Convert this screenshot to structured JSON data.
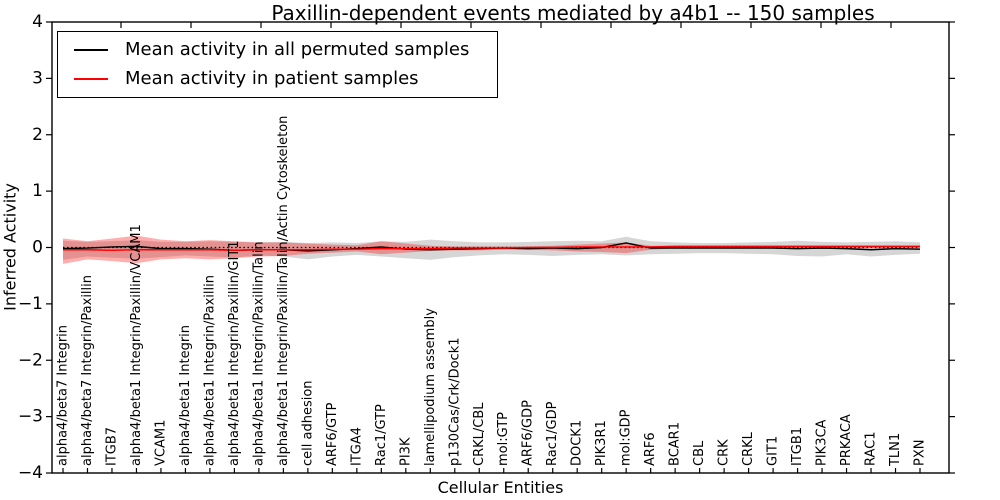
{
  "figure": {
    "title": "Paxillin-dependent events mediated by a4b1 -- 150 samples",
    "legend": {
      "items": [
        {
          "label": "Mean activity in all permuted samples",
          "color": "#000000"
        },
        {
          "label": "Mean activity in patient samples",
          "color": "#ff0000"
        }
      ]
    }
  },
  "chart_data": {
    "type": "line",
    "title": "Paxillin-dependent events mediated by a4b1 -- 150 samples",
    "xlabel": "Cellular Entities",
    "ylabel": "Inferred Activity",
    "ylim": [
      -4,
      4
    ],
    "yticks": [
      4,
      3,
      2,
      1,
      0,
      -1,
      -2,
      -3,
      -4
    ],
    "grid": false,
    "legend_position": "upper left",
    "zero_line": 0,
    "categories": [
      "alpha4/beta7 Integrin",
      "alpha4/beta7 Integrin/Paxillin",
      "ITGB7",
      "alpha4/beta1 Integrin/Paxillin/VCAM1",
      "VCAM1",
      "alpha4/beta1 Integrin",
      "alpha4/beta1 Integrin/Paxillin",
      "alpha4/beta1 Integrin/Paxillin/GIT1",
      "alpha4/beta1 Integrin/Paxillin/Talin",
      "alpha4/beta1 Integrin/Paxillin/Talin/Actin Cytoskeleton",
      "cell adhesion",
      "ARF6/GTP",
      "ITGA4",
      "Rac1/GTP",
      "PI3K",
      "lamellipodium assembly",
      "p130Cas/Crk/Dock1",
      "CRKL/CBL",
      "mol:GTP",
      "ARF6/GDP",
      "Rac1/GDP",
      "DOCK1",
      "PIK3R1",
      "mol:GDP",
      "ARF6",
      "BCAR1",
      "CBL",
      "CRK",
      "CRKL",
      "GIT1",
      "ITGB1",
      "PIK3CA",
      "PRKACA",
      "RAC1",
      "TLN1",
      "PXN"
    ],
    "series": [
      {
        "name": "Mean activity in all permuted samples",
        "color": "#000000",
        "values": [
          -0.02,
          -0.01,
          0.01,
          0.02,
          -0.02,
          -0.02,
          -0.03,
          -0.05,
          -0.04,
          -0.04,
          -0.06,
          -0.04,
          -0.02,
          0.01,
          -0.03,
          -0.04,
          -0.03,
          -0.02,
          -0.01,
          -0.02,
          -0.01,
          -0.02,
          0.0,
          0.08,
          -0.01,
          -0.01,
          -0.01,
          -0.01,
          -0.01,
          -0.01,
          -0.02,
          -0.01,
          -0.02,
          -0.04,
          -0.02,
          -0.03
        ]
      },
      {
        "name": "Mean activity in patient samples",
        "color": "#ff0000",
        "values": [
          -0.04,
          -0.04,
          -0.05,
          -0.04,
          -0.04,
          -0.04,
          -0.04,
          -0.05,
          -0.04,
          -0.04,
          -0.04,
          -0.03,
          -0.03,
          -0.02,
          -0.02,
          -0.02,
          -0.01,
          -0.01,
          -0.01,
          0.0,
          0.0,
          0.01,
          0.01,
          0.01,
          0.01,
          0.02,
          0.02,
          0.02,
          0.02,
          0.02,
          0.02,
          0.02,
          0.02,
          0.02,
          0.02,
          0.02
        ]
      }
    ],
    "bands": [
      {
        "name": "permuted-std-band",
        "color": "#000000",
        "opacity": 0.16,
        "upper": [
          0.12,
          0.1,
          0.11,
          0.13,
          0.1,
          0.1,
          0.11,
          0.1,
          0.09,
          0.1,
          0.08,
          0.09,
          0.08,
          0.11,
          0.1,
          0.14,
          0.11,
          0.09,
          0.09,
          0.1,
          0.11,
          0.12,
          0.11,
          0.19,
          0.11,
          0.09,
          0.08,
          0.08,
          0.09,
          0.1,
          0.12,
          0.1,
          0.09,
          0.1,
          0.11,
          0.09
        ],
        "lower": [
          -0.22,
          -0.16,
          -0.18,
          -0.2,
          -0.17,
          -0.14,
          -0.16,
          -0.18,
          -0.14,
          -0.16,
          -0.21,
          -0.16,
          -0.13,
          -0.16,
          -0.19,
          -0.22,
          -0.17,
          -0.14,
          -0.12,
          -0.13,
          -0.15,
          -0.13,
          -0.12,
          -0.14,
          -0.12,
          -0.11,
          -0.1,
          -0.1,
          -0.11,
          -0.12,
          -0.15,
          -0.16,
          -0.12,
          -0.16,
          -0.13,
          -0.11
        ]
      },
      {
        "name": "patient-std-band",
        "color": "#ff0000",
        "opacity": 0.32,
        "upper": [
          0.16,
          0.11,
          0.16,
          0.21,
          0.14,
          0.11,
          0.13,
          0.11,
          0.09,
          0.09,
          0.07,
          0.05,
          0.04,
          0.11,
          0.07,
          0.03,
          0.02,
          0.02,
          0.02,
          0.02,
          0.03,
          0.05,
          0.07,
          0.09,
          0.03,
          0.03,
          0.03,
          0.03,
          0.03,
          0.03,
          0.03,
          0.03,
          0.03,
          0.03,
          0.03,
          0.03
        ],
        "lower": [
          -0.29,
          -0.21,
          -0.24,
          -0.28,
          -0.21,
          -0.19,
          -0.21,
          -0.19,
          -0.16,
          -0.15,
          -0.11,
          -0.09,
          -0.07,
          -0.12,
          -0.09,
          -0.06,
          -0.05,
          -0.05,
          -0.04,
          -0.04,
          -0.05,
          -0.07,
          -0.08,
          -0.1,
          -0.04,
          -0.01,
          -0.01,
          -0.01,
          -0.01,
          -0.01,
          -0.01,
          -0.01,
          -0.01,
          -0.01,
          -0.01,
          -0.01
        ]
      }
    ]
  }
}
